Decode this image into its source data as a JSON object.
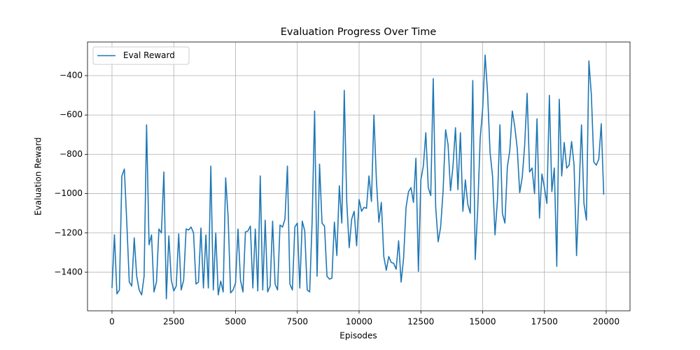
{
  "chart_data": {
    "type": "line",
    "title": "Evaluation Progress Over Time",
    "x_label": "Episodes",
    "y_label": "Evaluation Reward",
    "x": [
      0,
      100,
      200,
      300,
      400,
      500,
      600,
      700,
      800,
      900,
      1000,
      1100,
      1200,
      1300,
      1400,
      1500,
      1600,
      1700,
      1800,
      1900,
      2000,
      2100,
      2200,
      2300,
      2400,
      2500,
      2600,
      2700,
      2800,
      2900,
      3000,
      3100,
      3200,
      3300,
      3400,
      3500,
      3600,
      3700,
      3800,
      3900,
      4000,
      4100,
      4200,
      4300,
      4400,
      4500,
      4600,
      4700,
      4800,
      4900,
      5000,
      5100,
      5200,
      5300,
      5400,
      5500,
      5600,
      5700,
      5800,
      5900,
      6000,
      6100,
      6200,
      6300,
      6400,
      6500,
      6600,
      6700,
      6800,
      6900,
      7000,
      7100,
      7200,
      7300,
      7400,
      7500,
      7600,
      7700,
      7800,
      7900,
      8000,
      8100,
      8200,
      8300,
      8400,
      8500,
      8600,
      8700,
      8800,
      8900,
      9000,
      9100,
      9200,
      9300,
      9400,
      9500,
      9600,
      9700,
      9800,
      9900,
      10000,
      10100,
      10200,
      10300,
      10400,
      10500,
      10600,
      10700,
      10800,
      10900,
      11000,
      11100,
      11200,
      11300,
      11400,
      11500,
      11600,
      11700,
      11800,
      11900,
      12000,
      12100,
      12200,
      12300,
      12400,
      12500,
      12600,
      12700,
      12800,
      12900,
      13000,
      13100,
      13200,
      13300,
      13400,
      13500,
      13600,
      13700,
      13800,
      13900,
      14000,
      14100,
      14200,
      14300,
      14400,
      14500,
      14600,
      14700,
      14800,
      14900,
      15000,
      15100,
      15200,
      15300,
      15400,
      15500,
      15600,
      15700,
      15800,
      15900,
      16000,
      16100,
      16200,
      16300,
      16400,
      16500,
      16600,
      16700,
      16800,
      16900,
      17000,
      17100,
      17200,
      17300,
      17400,
      17500,
      17600,
      17700,
      17800,
      17900,
      18000,
      18100,
      18200,
      18300,
      18400,
      18500,
      18600,
      18700,
      18800,
      18900,
      19000,
      19100,
      19200,
      19300,
      19400,
      19500,
      19600,
      19700,
      19800,
      19900
    ],
    "series": [
      {
        "name": "Eval Reward",
        "color": "#1f77b4",
        "values": [
          -1480,
          -1210,
          -1510,
          -1490,
          -910,
          -875,
          -1150,
          -1450,
          -1470,
          -1225,
          -1420,
          -1490,
          -1515,
          -1420,
          -650,
          -1260,
          -1210,
          -1500,
          -1450,
          -1180,
          -1200,
          -890,
          -1535,
          -1215,
          -1440,
          -1495,
          -1470,
          -1205,
          -1490,
          -1440,
          -1180,
          -1185,
          -1170,
          -1200,
          -1460,
          -1450,
          -1175,
          -1480,
          -1210,
          -1480,
          -860,
          -1490,
          -1200,
          -1515,
          -1445,
          -1500,
          -920,
          -1120,
          -1505,
          -1490,
          -1455,
          -1180,
          -1440,
          -1500,
          -1195,
          -1190,
          -1165,
          -1480,
          -1180,
          -1495,
          -910,
          -1490,
          -1135,
          -1500,
          -1470,
          -1140,
          -1460,
          -1490,
          -1160,
          -1170,
          -1130,
          -860,
          -1460,
          -1490,
          -1170,
          -1150,
          -1480,
          -1140,
          -1190,
          -1490,
          -1500,
          -1140,
          -580,
          -1420,
          -850,
          -1150,
          -1165,
          -1420,
          -1435,
          -1430,
          -1145,
          -1315,
          -960,
          -1150,
          -475,
          -1040,
          -1275,
          -1130,
          -1090,
          -1265,
          -1030,
          -1090,
          -1070,
          -1075,
          -910,
          -1040,
          -600,
          -930,
          -1145,
          -1045,
          -1320,
          -1390,
          -1320,
          -1350,
          -1355,
          -1385,
          -1240,
          -1450,
          -1330,
          -1070,
          -990,
          -970,
          -1045,
          -820,
          -1395,
          -930,
          -860,
          -690,
          -970,
          -1010,
          -415,
          -1070,
          -1245,
          -1170,
          -985,
          -675,
          -750,
          -985,
          -860,
          -665,
          -980,
          -690,
          -1090,
          -930,
          -1055,
          -1100,
          -425,
          -1335,
          -1080,
          -720,
          -570,
          -295,
          -490,
          -790,
          -910,
          -1210,
          -1030,
          -650,
          -1100,
          -1150,
          -865,
          -780,
          -580,
          -660,
          -770,
          -995,
          -920,
          -755,
          -490,
          -890,
          -870,
          -1000,
          -620,
          -1125,
          -900,
          -970,
          -1050,
          -500,
          -990,
          -870,
          -1370,
          -520,
          -910,
          -740,
          -870,
          -855,
          -735,
          -855,
          -1315,
          -990,
          -650,
          -1050,
          -1135,
          -325,
          -500,
          -840,
          -855,
          -825,
          -645,
          -1005
        ]
      }
    ],
    "xlim": [
      -991,
      20963
    ],
    "ylim": [
      -1596,
      -229
    ],
    "xticks": [
      0,
      2500,
      5000,
      7500,
      10000,
      12500,
      15000,
      17500,
      20000
    ],
    "yticks": [
      {
        "value": -1400,
        "label": "−1400"
      },
      {
        "value": -1200,
        "label": "−1200"
      },
      {
        "value": -1000,
        "label": "−1000"
      },
      {
        "value": -800,
        "label": "−800"
      },
      {
        "value": -600,
        "label": "−600"
      },
      {
        "value": -400,
        "label": "−400"
      }
    ],
    "grid": true,
    "legend": "upper left"
  }
}
